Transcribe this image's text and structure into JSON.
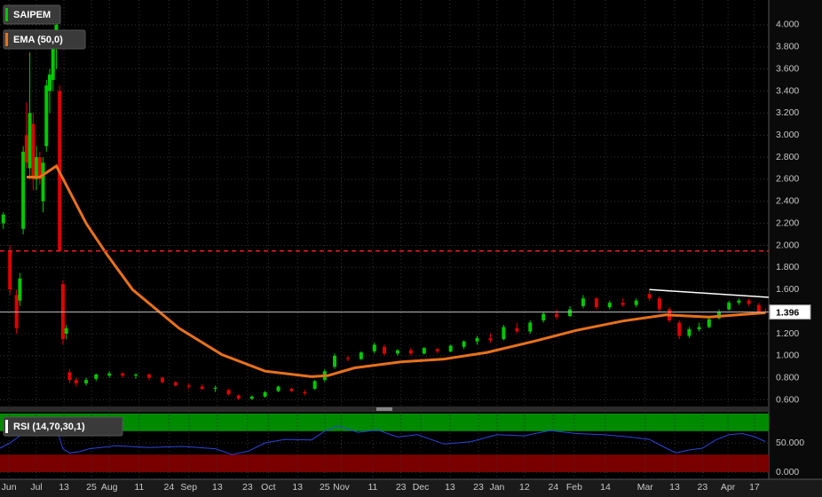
{
  "chart_data": [
    {
      "type": "candlestick",
      "xlim": [
        0,
        232
      ],
      "ylim": [
        0.54,
        4.225
      ],
      "grid": true,
      "yticks": [
        {
          "value": 0.6,
          "label": "0.600"
        },
        {
          "value": 0.8,
          "label": "0.800"
        },
        {
          "value": 1.0,
          "label": "1.000"
        },
        {
          "value": 1.2,
          "label": "1.200"
        },
        {
          "value": 1.4,
          "label": "1.400"
        },
        {
          "value": 1.6,
          "label": "1.600"
        },
        {
          "value": 1.8,
          "label": "1.800"
        },
        {
          "value": 2.0,
          "label": "2.000"
        },
        {
          "value": 2.2,
          "label": "2.200"
        },
        {
          "value": 2.4,
          "label": "2.400"
        },
        {
          "value": 2.6,
          "label": "2.600"
        },
        {
          "value": 2.8,
          "label": "2.800"
        },
        {
          "value": 3.0,
          "label": "3.000"
        },
        {
          "value": 3.2,
          "label": "3.200"
        },
        {
          "value": 3.4,
          "label": "3.400"
        },
        {
          "value": 3.6,
          "label": "3.600"
        },
        {
          "value": 3.8,
          "label": "3.800"
        },
        {
          "value": 4.0,
          "label": "4.000"
        }
      ],
      "xticks": [
        {
          "value": 2.7,
          "label": "Jun"
        },
        {
          "value": 11,
          "label": "Jul"
        },
        {
          "value": 19.3,
          "label": "13"
        },
        {
          "value": 27.6,
          "label": "25"
        },
        {
          "value": 33,
          "label": "Aug"
        },
        {
          "value": 42,
          "label": "11"
        },
        {
          "value": 51,
          "label": "24"
        },
        {
          "value": 57,
          "label": "Sep"
        },
        {
          "value": 65.6,
          "label": "13"
        },
        {
          "value": 74.7,
          "label": "23"
        },
        {
          "value": 81,
          "label": "Oct"
        },
        {
          "value": 89.8,
          "label": "13"
        },
        {
          "value": 98,
          "label": "25"
        },
        {
          "value": 103,
          "label": "Nov"
        },
        {
          "value": 112.5,
          "label": "11"
        },
        {
          "value": 121,
          "label": "23"
        },
        {
          "value": 127,
          "label": "Dec"
        },
        {
          "value": 135.8,
          "label": "13"
        },
        {
          "value": 144.4,
          "label": "23"
        },
        {
          "value": 150,
          "label": "Jan"
        },
        {
          "value": 158.3,
          "label": "12"
        },
        {
          "value": 167,
          "label": "24"
        },
        {
          "value": 173.3,
          "label": "Feb"
        },
        {
          "value": 182.7,
          "label": "14"
        },
        {
          "value": 194.7,
          "label": "Mar"
        },
        {
          "value": 203.6,
          "label": "13"
        },
        {
          "value": 212,
          "label": "23"
        },
        {
          "value": 219.7,
          "label": "Apr"
        },
        {
          "value": 227.7,
          "label": "17"
        }
      ],
      "series": [
        {
          "name": "SAIPEM",
          "color": "#00c800",
          "color_down": "#e00000",
          "x": [
            1,
            3,
            5,
            6,
            7,
            8,
            9,
            10,
            11,
            12,
            13,
            14,
            15,
            16,
            17,
            18,
            19,
            20,
            21,
            23,
            26,
            29,
            33,
            37,
            41,
            45,
            49,
            53,
            57,
            61,
            65,
            69,
            72,
            76,
            80,
            84,
            88,
            92,
            95,
            98,
            101,
            105,
            109,
            113,
            116,
            120,
            124,
            128,
            132,
            136,
            140,
            144,
            148,
            152,
            156,
            160,
            164,
            168,
            172,
            176,
            180,
            184,
            188,
            192,
            196,
            199,
            202,
            205,
            208,
            211,
            214,
            217,
            220,
            223,
            226,
            229,
            231
          ],
          "open": [
            2.2,
            1.95,
            1.55,
            1.5,
            2.15,
            3.0,
            2.7,
            3.1,
            2.6,
            2.8,
            2.4,
            2.9,
            3.4,
            3.5,
            3.8,
            3.4,
            1.65,
            1.2,
            0.85,
            0.78,
            0.75,
            0.79,
            0.82,
            0.84,
            0.82,
            0.83,
            0.8,
            0.76,
            0.73,
            0.72,
            0.7,
            0.69,
            0.64,
            0.61,
            0.63,
            0.68,
            0.7,
            0.67,
            0.7,
            0.78,
            0.9,
            0.98,
            0.97,
            1.04,
            1.08,
            1.02,
            1.05,
            1.02,
            1.06,
            1.04,
            1.08,
            1.13,
            1.16,
            1.15,
            1.25,
            1.22,
            1.32,
            1.38,
            1.36,
            1.45,
            1.52,
            1.44,
            1.48,
            1.46,
            1.56,
            1.52,
            1.42,
            1.3,
            1.18,
            1.24,
            1.26,
            1.34,
            1.42,
            1.48,
            1.5,
            1.46,
            1.4
          ],
          "high": [
            2.3,
            2.0,
            1.6,
            1.75,
            2.9,
            3.3,
            3.75,
            3.2,
            2.9,
            2.85,
            2.8,
            3.5,
            3.6,
            3.9,
            4.1,
            3.45,
            1.68,
            1.28,
            0.88,
            0.8,
            0.8,
            0.84,
            0.86,
            0.85,
            0.84,
            0.84,
            0.81,
            0.77,
            0.75,
            0.74,
            0.73,
            0.7,
            0.65,
            0.64,
            0.68,
            0.73,
            0.71,
            0.69,
            0.78,
            0.88,
            1.02,
            1.0,
            1.04,
            1.12,
            1.1,
            1.06,
            1.07,
            1.08,
            1.07,
            1.1,
            1.14,
            1.18,
            1.2,
            1.28,
            1.3,
            1.32,
            1.4,
            1.42,
            1.45,
            1.55,
            1.53,
            1.5,
            1.52,
            1.52,
            1.6,
            1.54,
            1.44,
            1.32,
            1.26,
            1.3,
            1.34,
            1.42,
            1.5,
            1.52,
            1.52,
            1.48,
            1.43
          ],
          "low": [
            2.15,
            1.55,
            1.2,
            1.45,
            2.1,
            2.7,
            2.6,
            2.5,
            2.5,
            2.55,
            2.3,
            2.85,
            3.2,
            3.4,
            3.6,
            1.95,
            1.1,
            1.15,
            0.75,
            0.72,
            0.73,
            0.77,
            0.8,
            0.8,
            0.79,
            0.78,
            0.75,
            0.72,
            0.7,
            0.69,
            0.67,
            0.64,
            0.6,
            0.6,
            0.62,
            0.67,
            0.67,
            0.64,
            0.69,
            0.76,
            0.88,
            0.95,
            0.96,
            1.02,
            1.0,
            1.0,
            1.0,
            1.01,
            1.02,
            1.03,
            1.06,
            1.1,
            1.12,
            1.14,
            1.2,
            1.2,
            1.3,
            1.33,
            1.35,
            1.43,
            1.42,
            1.42,
            1.44,
            1.44,
            1.5,
            1.4,
            1.3,
            1.15,
            1.16,
            1.22,
            1.25,
            1.33,
            1.41,
            1.46,
            1.45,
            1.38,
            1.38
          ],
          "close": [
            2.28,
            1.6,
            1.25,
            1.7,
            2.85,
            2.75,
            3.2,
            2.6,
            2.8,
            2.6,
            2.75,
            3.45,
            3.55,
            3.8,
            4.0,
            1.95,
            1.15,
            1.25,
            0.78,
            0.75,
            0.78,
            0.83,
            0.84,
            0.82,
            0.83,
            0.8,
            0.76,
            0.73,
            0.72,
            0.7,
            0.71,
            0.65,
            0.61,
            0.63,
            0.67,
            0.72,
            0.68,
            0.66,
            0.77,
            0.86,
            1.0,
            0.97,
            1.03,
            1.1,
            1.02,
            1.05,
            1.02,
            1.07,
            1.04,
            1.09,
            1.13,
            1.16,
            1.14,
            1.26,
            1.22,
            1.3,
            1.38,
            1.35,
            1.42,
            1.52,
            1.44,
            1.48,
            1.46,
            1.5,
            1.52,
            1.42,
            1.32,
            1.18,
            1.24,
            1.26,
            1.33,
            1.4,
            1.48,
            1.5,
            1.47,
            1.4,
            1.396
          ]
        },
        {
          "name": "EMA (50,0)",
          "type": "line",
          "color": "#e8711c",
          "x": [
            8,
            12,
            17,
            26,
            32,
            40,
            54,
            67,
            80,
            94,
            99,
            107,
            121,
            134,
            147,
            161,
            174,
            188,
            201,
            214,
            231
          ],
          "values": [
            2.62,
            2.62,
            2.72,
            2.2,
            1.93,
            1.6,
            1.25,
            1.01,
            0.86,
            0.81,
            0.82,
            0.89,
            0.945,
            0.97,
            1.03,
            1.13,
            1.23,
            1.315,
            1.37,
            1.35,
            1.39
          ]
        }
      ],
      "hline": {
        "value": 1.95,
        "color": "#e02020"
      },
      "trendline": {
        "x": [
          196,
          232
        ],
        "values": [
          1.6,
          1.53
        ],
        "color": "#ffffff"
      },
      "last_price": 1.396
    },
    {
      "type": "line",
      "xlim": [
        0,
        232
      ],
      "ylim": [
        -12,
        103
      ],
      "yticks": [
        {
          "value": 0,
          "label": "0.000"
        },
        {
          "value": 50,
          "label": "50.000"
        }
      ],
      "bands": [
        {
          "from": 70,
          "to": 100,
          "color": "#008a00"
        },
        {
          "from": 0,
          "to": 30,
          "color": "#7a0000"
        }
      ],
      "series": [
        {
          "name": "RSI (14,70,30,1)",
          "color": "#2a45d8",
          "x": [
            0,
            3,
            6,
            8,
            11,
            14,
            17,
            19,
            21,
            24,
            27,
            35,
            45,
            55,
            65,
            70,
            75,
            80,
            86,
            94,
            98,
            102,
            108,
            114,
            120,
            126,
            134,
            142,
            150,
            158,
            166,
            174,
            182,
            190,
            196,
            200,
            204,
            208,
            212,
            216,
            220,
            224,
            228,
            231
          ],
          "values": [
            41,
            50,
            62,
            79,
            66,
            72,
            76,
            40,
            33,
            35,
            40,
            45,
            42,
            44,
            40,
            30,
            36,
            50,
            56,
            55,
            70,
            79,
            68,
            72,
            60,
            64,
            48,
            52,
            64,
            62,
            71,
            66,
            64,
            60,
            56,
            44,
            33,
            38,
            41,
            55,
            64,
            66,
            60,
            52
          ]
        }
      ]
    }
  ]
}
